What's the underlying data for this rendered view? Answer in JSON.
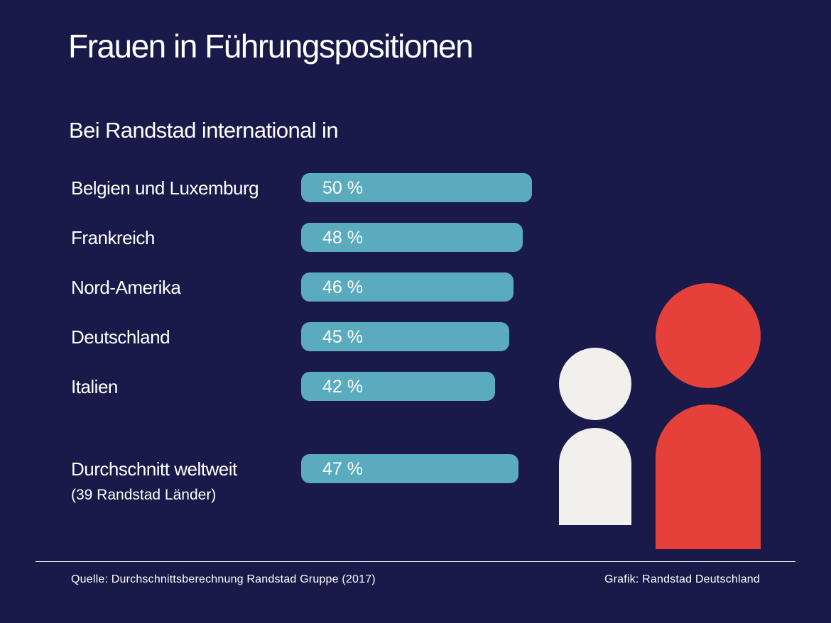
{
  "chart_data": {
    "type": "bar",
    "title": "Frauen in Führungspositionen",
    "subtitle": "Bei Randstad international in",
    "categories": [
      "Belgien und Luxemburg",
      "Frankreich",
      "Nord-Amerika",
      "Deutschland",
      "Italien"
    ],
    "values": [
      50,
      48,
      46,
      45,
      42
    ],
    "value_labels": [
      "50 %",
      "48 %",
      "46 %",
      "45 %",
      "42 %"
    ],
    "average": {
      "label": "Durchschnitt weltweit",
      "sublabel": "(39 Randstad Länder)",
      "value": 47,
      "value_label": "47 %"
    },
    "unit": "%",
    "orientation": "horizontal",
    "colors": {
      "background": "#19194a",
      "bar": "#5aabbe",
      "figure_light": "#f2f0ec",
      "figure_red": "#e5413a"
    }
  },
  "footer": {
    "source": "Quelle: Durchschnittsberechnung Randstad Gruppe (2017)",
    "credit": "Grafik: Randstad Deutschland"
  },
  "illustration": {
    "icon": "people-icon"
  }
}
